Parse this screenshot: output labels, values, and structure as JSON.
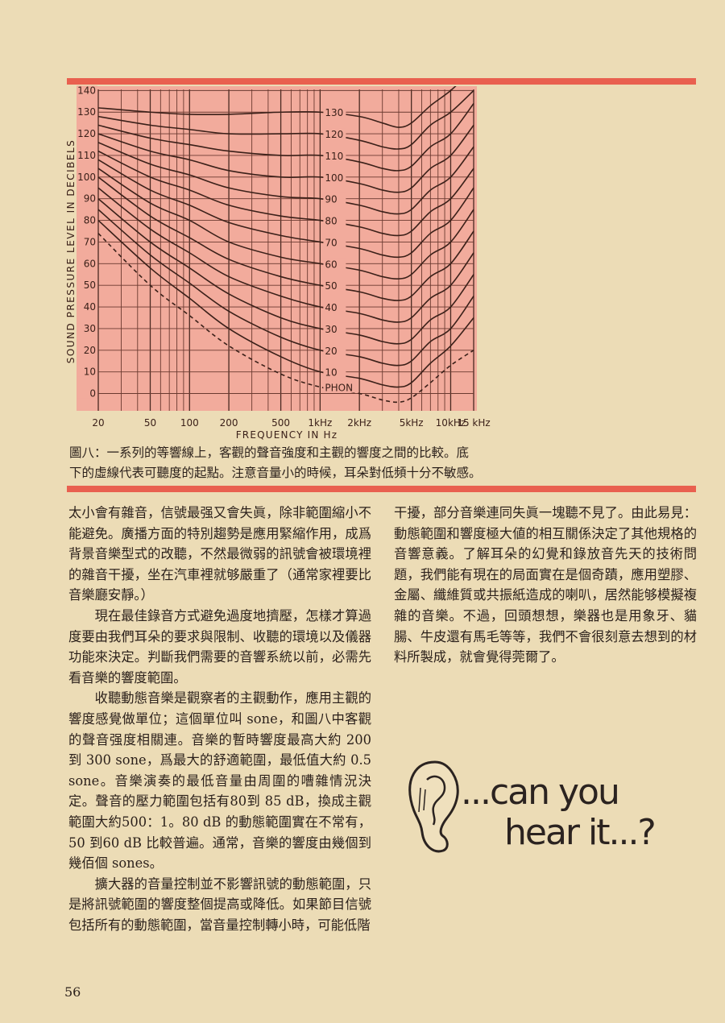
{
  "chart_data": {
    "type": "line",
    "xlabel": "FREQUENCY IN Hz",
    "ylabel": "SOUND PRESSURE LEVEL IN DECIBELS",
    "log_x": true,
    "x": [
      20,
      50,
      100,
      200,
      500,
      1000,
      2000,
      3000,
      4000,
      5000,
      7000,
      10000,
      15000
    ],
    "xlim": [
      20,
      15000
    ],
    "xticks": [
      20,
      50,
      100,
      200,
      500,
      {
        "value": 1000,
        "label": "1kHz"
      },
      {
        "value": 2000,
        "label": "2kHz"
      },
      {
        "value": 5000,
        "label": "5kHz"
      },
      {
        "value": 10000,
        "label": "10kHz"
      },
      {
        "value": 15000,
        "label": "15 kHz"
      }
    ],
    "xgrid_minor": [
      30,
      40,
      60,
      70,
      80,
      90,
      300,
      400,
      600,
      700,
      800,
      900,
      3000,
      4000,
      6000,
      7000,
      8000,
      9000
    ],
    "ylim": [
      -8,
      142
    ],
    "yticks": [
      0,
      10,
      20,
      30,
      40,
      50,
      60,
      70,
      80,
      90,
      100,
      110,
      120,
      130,
      140
    ],
    "grid": true,
    "background": "#f2ab9c",
    "series": [
      {
        "name": "PHON",
        "color": "#3b2019",
        "dashed": true,
        "values": [
          74,
          50,
          36,
          22,
          9,
          3,
          0,
          -3,
          -4,
          -2,
          5,
          13,
          20
        ]
      },
      {
        "name": "10",
        "color": "#3b2019",
        "values": [
          80,
          58,
          44,
          30,
          17,
          10,
          7,
          4,
          3,
          5,
          14,
          22,
          35
        ]
      },
      {
        "name": "20",
        "color": "#3b2019",
        "values": [
          85,
          64,
          51,
          38,
          26,
          20,
          17,
          14,
          13,
          15,
          24,
          30,
          45
        ]
      },
      {
        "name": "30",
        "color": "#3b2019",
        "values": [
          90,
          70,
          58,
          46,
          35,
          30,
          27,
          24,
          23,
          25,
          34,
          40,
          55
        ]
      },
      {
        "name": "40",
        "color": "#3b2019",
        "values": [
          95,
          76,
          65,
          54,
          45,
          40,
          37,
          34,
          33,
          35,
          44,
          50,
          65
        ]
      },
      {
        "name": "50",
        "color": "#3b2019",
        "values": [
          100,
          82,
          72,
          62,
          54,
          50,
          47,
          44,
          43,
          45,
          54,
          60,
          75
        ]
      },
      {
        "name": "60",
        "color": "#3b2019",
        "values": [
          104,
          88,
          80,
          70,
          63,
          60,
          57,
          54,
          53,
          55,
          64,
          70,
          85
        ]
      },
      {
        "name": "70",
        "color": "#3b2019",
        "values": [
          108,
          94,
          87,
          79,
          73,
          70,
          67,
          64,
          63,
          65,
          74,
          80,
          95
        ]
      },
      {
        "name": "80",
        "color": "#3b2019",
        "values": [
          112,
          100,
          94,
          87,
          82,
          80,
          77,
          74,
          73,
          75,
          84,
          90,
          104
        ]
      },
      {
        "name": "90",
        "color": "#3b2019",
        "values": [
          116,
          106,
          101,
          95,
          91,
          90,
          87,
          84,
          83,
          85,
          94,
          100,
          114
        ]
      },
      {
        "name": "100",
        "color": "#3b2019",
        "values": [
          120,
          112,
          108,
          103,
          100,
          100,
          97,
          94,
          93,
          95,
          104,
          110,
          124
        ]
      },
      {
        "name": "110",
        "color": "#3b2019",
        "values": [
          124,
          118,
          115,
          112,
          110,
          110,
          107,
          104,
          103,
          105,
          114,
          120,
          134
        ]
      },
      {
        "name": "120",
        "color": "#3b2019",
        "values": [
          128,
          124,
          122,
          120,
          120,
          120,
          117,
          114,
          113,
          115,
          124,
          130,
          140
        ]
      },
      {
        "name": "130",
        "color": "#3b2019",
        "values": [
          132,
          130,
          129,
          129,
          130,
          130,
          128,
          125,
          123,
          125,
          133,
          140,
          150
        ]
      }
    ]
  },
  "caption": [
    "圖八：一系列的等響線上，客觀的聲音強度和主觀的響度之間的比較。底",
    "下的虛線代表可聽度的起點。注意音量小的時候，耳朵對低頻十分不敏感。"
  ],
  "columns": {
    "left": [
      "太小會有雜音，信號最强又會失眞，除非範圍縮小不能避免。廣播方面的特別趨勢是應用緊縮作用，成爲背景音樂型式的改聽，不然最微弱的訊號會被環境裡的雜音干擾，坐在汽車裡就够嚴重了（通常家裡要比音樂廳安靜。）",
      "現在最佳錄音方式避免過度地擠壓，怎樣才算過度要由我們耳朵的要求與限制、收聽的環境以及儀器功能來決定。判斷我們需要的音響系統以前，必需先看音樂的響度範圍。",
      "收聽動態音樂是觀察者的主觀動作，應用主觀的響度感覺做單位；這個單位叫 sone，和圖八中客觀的聲音强度相關連。音樂的暫時響度最高大約 200 到 300 sone，爲最大的舒適範圍，最低值大約 0.5 sone。音樂演奏的最低音量由周圍的嘈雜情況決定。聲音的壓力範圍包括有80到 85 dB，換成主觀範圍大約500：1。80 dB 的動態範圍實在不常有，50 到60 dB 比較普遍。通常，音樂的響度由幾個到幾佰個 sones。",
      "擴大器的音量控制並不影響訊號的動態範圍，只是將訊號範圍的響度整個提高或降低。如果節目信號包括所有的動態範圍，當音量控制轉小時，可能低階"
    ],
    "right": [
      "干擾，部分音樂連同失眞一塊聽不見了。由此易見：動態範圍和響度極大値的相互關係決定了其他規格的音響意義。了解耳朵的幻覺和錄放音先天的技術問題，我們能有現在的局面實在是個奇蹟，應用塑膠、金屬、纖維質或共振紙造成的喇叭，居然能够模擬複雜的音樂。不過，回頭想想，樂器也是用象牙、貓腸、牛皮還有馬毛等等，我們不會很刻意去想到的材料所製成，就會覺得莞爾了。"
    ]
  },
  "ad": [
    "...can you",
    "hear it...?"
  ],
  "page_number": "56"
}
